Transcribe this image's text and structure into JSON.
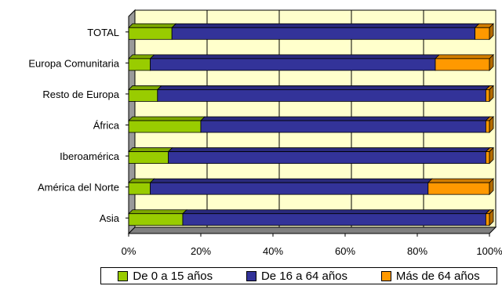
{
  "chart_data": {
    "type": "bar",
    "orientation": "horizontal",
    "stacked": "percent",
    "categories": [
      "TOTAL",
      "Europa Comunitaria",
      "Resto de Europa",
      "África",
      "Iberoamérica",
      "América del Norte",
      "Asia"
    ],
    "series": [
      {
        "name": "De 0 a 15 años",
        "color": "#99cc00",
        "values": [
          12,
          6,
          8,
          20,
          11,
          6,
          15
        ]
      },
      {
        "name": "De 16 a 64 años",
        "color": "#333399",
        "values": [
          84,
          79,
          91,
          79,
          88,
          77,
          84
        ]
      },
      {
        "name": "Más de 64 años",
        "color": "#ff9900",
        "values": [
          4,
          15,
          1,
          1,
          1,
          17,
          1
        ]
      }
    ],
    "x_ticks": [
      "0%",
      "20%",
      "40%",
      "60%",
      "80%",
      "100%"
    ],
    "xlim": [
      0,
      100
    ],
    "grid": true,
    "legend_position": "bottom"
  }
}
